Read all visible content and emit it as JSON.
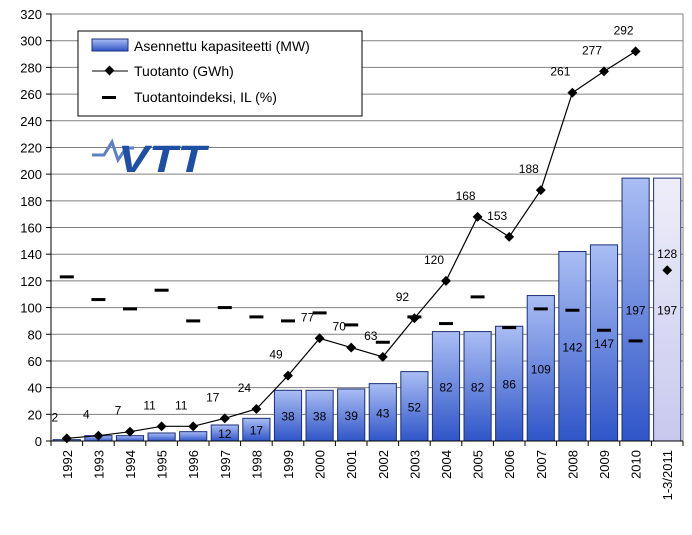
{
  "chart_data": {
    "type": "bar+line",
    "title": "",
    "xlabel": "",
    "ylabel": "",
    "ylim": [
      0,
      320
    ],
    "ytick_step": 20,
    "categories": [
      "1992",
      "1993",
      "1994",
      "1995",
      "1996",
      "1997",
      "1998",
      "1999",
      "2000",
      "2001",
      "2002",
      "2003",
      "2004",
      "2005",
      "2006",
      "2007",
      "2008",
      "2009",
      "2010",
      "1-3/2011"
    ],
    "series": [
      {
        "name": "Asennettu kapasiteetti (MW)",
        "kind": "bar",
        "values": [
          1,
          4,
          4,
          6,
          7,
          12,
          17,
          38,
          38,
          39,
          43,
          52,
          82,
          82,
          86,
          109,
          142,
          147,
          197,
          197
        ],
        "labels": [
          "",
          "",
          "",
          "",
          "",
          "12",
          "17",
          "38",
          "38",
          "39",
          "43",
          "52",
          "82",
          "82",
          "86",
          "109",
          "142",
          "147",
          "197",
          "197"
        ]
      },
      {
        "name": "Tuotanto (GWh)",
        "kind": "line",
        "values": [
          2,
          4,
          7,
          11,
          11,
          17,
          24,
          49,
          77,
          70,
          63,
          92,
          120,
          168,
          153,
          188,
          261,
          277,
          292,
          128
        ],
        "labels": [
          "2",
          "4",
          "7",
          "11",
          "11",
          "17",
          "24",
          "49",
          "77",
          "70",
          "63",
          "92",
          "120",
          "168",
          "153",
          "188",
          "261",
          "277",
          "292",
          "128"
        ]
      },
      {
        "name": "Tuotantoindeksi, IL (%)",
        "kind": "dash",
        "values": [
          123,
          106,
          99,
          113,
          90,
          100,
          93,
          90,
          96,
          87,
          74,
          93,
          88,
          108,
          85,
          99,
          98,
          83,
          75,
          null
        ]
      }
    ],
    "legend": [
      "Asennettu kapasiteetti (MW)",
      "Tuotanto (GWh)",
      "Tuotantoindeksi, IL (%)"
    ],
    "legend_position": "top-left",
    "grid": true
  },
  "logo": {
    "text": "VTT"
  },
  "colors": {
    "bar_top": "#2f55c8",
    "bar_bottom": "#aabef4",
    "bar_last_top": "#e6e6f6",
    "bar_last_bottom": "#c8c8ee",
    "bar_stroke": "#1c2f78",
    "line": "#000000",
    "grid": "#808080",
    "logo": "#1f4fa3",
    "logo_wave": "#5d7fc4"
  }
}
